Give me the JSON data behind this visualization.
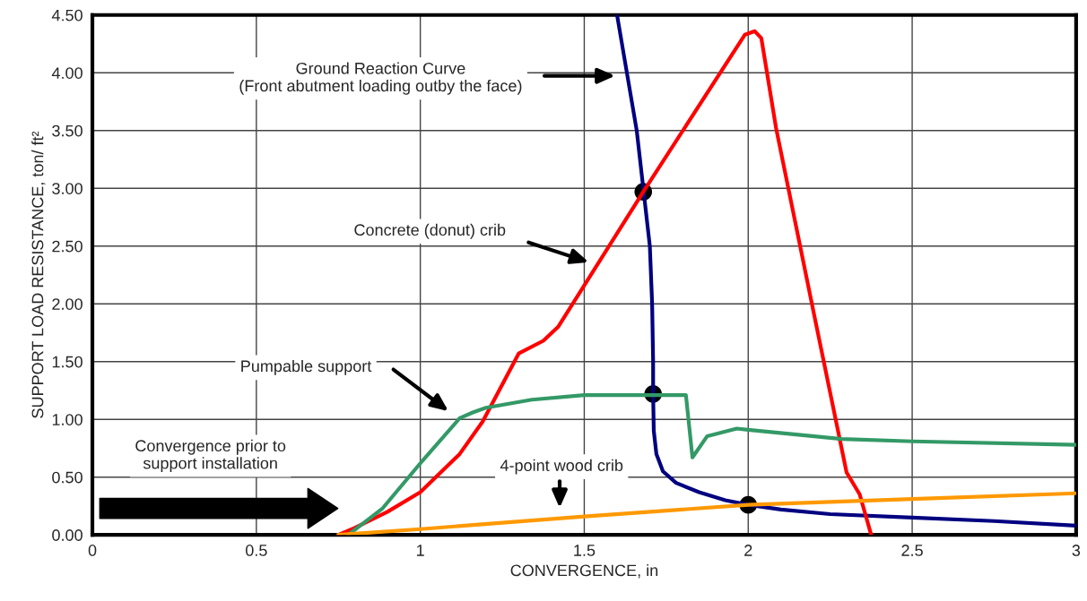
{
  "chart_data": {
    "type": "line",
    "xlabel": "CONVERGENCE, in",
    "ylabel": "SUPPORT LOAD RESISTANCE, ton/ ft²",
    "xlim": [
      0,
      3
    ],
    "xticks": [
      0,
      0.5,
      1,
      1.5,
      2,
      2.5,
      3
    ],
    "ylim": [
      0,
      4.5
    ],
    "yticks": [
      {
        "value": 0,
        "label": "0.00"
      },
      {
        "value": 0.5,
        "label": "0.50"
      },
      {
        "value": 1,
        "label": "1.00"
      },
      {
        "value": 1.5,
        "label": "1.50"
      },
      {
        "value": 2,
        "label": "2.00"
      },
      {
        "value": 2.5,
        "label": "2.50"
      },
      {
        "value": 3,
        "label": "3.00"
      },
      {
        "value": 3.5,
        "label": "3.50"
      },
      {
        "value": 4,
        "label": "4.00"
      },
      {
        "value": 4.5,
        "label": "4.50"
      }
    ],
    "grid": true,
    "legend": false,
    "marker": "none",
    "line_style": "solid",
    "series": [
      {
        "color": "#000080",
        "x": [
          1.6,
          1.63,
          1.66,
          1.68,
          1.7,
          1.707,
          1.71,
          1.71,
          1.712,
          1.72,
          1.74,
          1.78,
          1.85,
          1.93,
          2.0,
          2.1,
          2.25,
          2.5,
          2.75,
          3.0
        ],
        "values": [
          4.5,
          4.0,
          3.5,
          3.0,
          2.5,
          2.0,
          1.5,
          1.22,
          0.9,
          0.7,
          0.55,
          0.45,
          0.37,
          0.3,
          0.26,
          0.22,
          0.18,
          0.15,
          0.12,
          0.08
        ]
      },
      {
        "color": "#ff0000",
        "x": [
          0.75,
          0.8,
          0.9,
          1.0,
          1.12,
          1.19,
          1.3,
          1.375,
          1.42,
          1.68,
          1.99,
          2.02,
          2.04,
          2.085,
          2.2,
          2.3,
          2.34,
          2.375
        ],
        "values": [
          0,
          0.06,
          0.2,
          0.37,
          0.7,
          0.98,
          1.57,
          1.68,
          1.8,
          2.97,
          4.33,
          4.36,
          4.3,
          3.52,
          1.92,
          0.54,
          0.35,
          0
        ]
      },
      {
        "color": "#339966",
        "x": [
          0.78,
          0.885,
          1.0,
          1.12,
          1.16,
          1.2,
          1.34,
          1.5,
          1.81,
          1.83,
          1.875,
          1.965,
          2.0,
          2.285,
          2.5,
          3.0
        ],
        "values": [
          0,
          0.23,
          0.62,
          1.01,
          1.06,
          1.1,
          1.17,
          1.21,
          1.21,
          0.67,
          0.855,
          0.92,
          0.91,
          0.83,
          0.81,
          0.78
        ]
      },
      {
        "color": "#ff9900",
        "x": [
          0.75,
          1.0,
          1.5,
          2.0,
          2.5,
          3.0
        ],
        "values": [
          0,
          0.05,
          0.16,
          0.26,
          0.31,
          0.36
        ]
      },
      {
        "type": "scatter",
        "color": "#000000",
        "marker": "circle",
        "x": [
          1.68,
          1.71,
          2.0
        ],
        "values": [
          2.97,
          1.22,
          0.26
        ]
      }
    ],
    "annotations": [
      "Ground Reaction Curve\n(Front abutment loading outby the face)",
      "Concrete (donut) crib",
      "Pumpable support",
      "4-point wood crib",
      "Convergence prior to\nsupport installation"
    ]
  }
}
